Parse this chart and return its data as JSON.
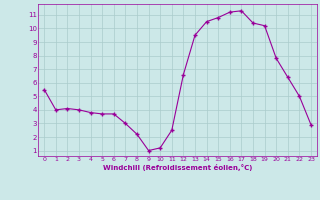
{
  "x": [
    0,
    1,
    2,
    3,
    4,
    5,
    6,
    7,
    8,
    9,
    10,
    11,
    12,
    13,
    14,
    15,
    16,
    17,
    18,
    19,
    20,
    21,
    22,
    23
  ],
  "y": [
    5.5,
    4.0,
    4.1,
    4.0,
    3.8,
    3.7,
    3.7,
    3.0,
    2.2,
    1.0,
    1.2,
    2.5,
    6.6,
    9.5,
    10.5,
    10.8,
    11.2,
    11.3,
    10.4,
    10.2,
    7.8,
    6.4,
    5.0,
    2.9
  ],
  "line_color": "#990099",
  "marker_color": "#990099",
  "bg_color": "#cce8e8",
  "grid_color": "#aacccc",
  "xlabel": "Windchill (Refroidissement éolien,°C)",
  "xlabel_color": "#990099",
  "tick_color": "#990099",
  "ylim": [
    0.6,
    11.8
  ],
  "xlim": [
    -0.5,
    23.5
  ],
  "yticks": [
    1,
    2,
    3,
    4,
    5,
    6,
    7,
    8,
    9,
    10,
    11
  ],
  "xticks": [
    0,
    1,
    2,
    3,
    4,
    5,
    6,
    7,
    8,
    9,
    10,
    11,
    12,
    13,
    14,
    15,
    16,
    17,
    18,
    19,
    20,
    21,
    22,
    23
  ]
}
